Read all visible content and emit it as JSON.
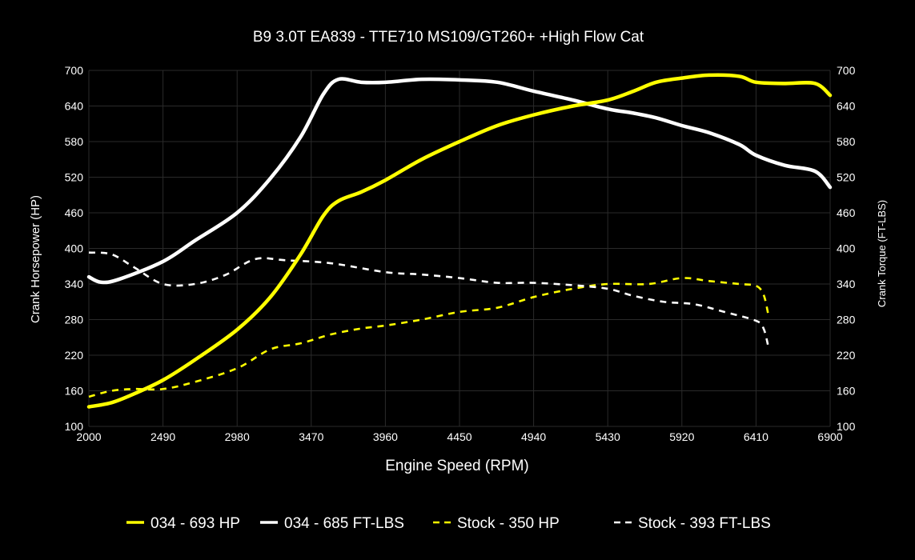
{
  "chart_data": {
    "type": "line",
    "title": "B9 3.0T EA839 - TTE710 MS109/GT260+ +High Flow Cat",
    "xlabel": "Engine Speed (RPM)",
    "ylabel_left": "Crank Horsepower (HP)",
    "ylabel_right": "Crank Torque (FT-LBS)",
    "xlim": [
      2000,
      6900
    ],
    "ylim": [
      100,
      700
    ],
    "x_ticks": [
      "2000",
      "2490",
      "2980",
      "3470",
      "3960",
      "4450",
      "4940",
      "5430",
      "5920",
      "6410",
      "6900"
    ],
    "y_ticks_left": [
      "100",
      "160",
      "220",
      "280",
      "340",
      "400",
      "460",
      "520",
      "580",
      "640",
      "700"
    ],
    "y_ticks_right": [
      "100",
      "160",
      "220",
      "280",
      "340",
      "400",
      "460",
      "520",
      "580",
      "640",
      "700"
    ],
    "grid": true,
    "legend_position": "bottom",
    "series": [
      {
        "name": "034 - 693 HP",
        "color": "#ffff00",
        "style": "solid",
        "points": [
          [
            2000,
            133
          ],
          [
            2150,
            140
          ],
          [
            2300,
            155
          ],
          [
            2490,
            178
          ],
          [
            2700,
            212
          ],
          [
            2980,
            263
          ],
          [
            3200,
            318
          ],
          [
            3400,
            390
          ],
          [
            3550,
            455
          ],
          [
            3650,
            480
          ],
          [
            3800,
            495
          ],
          [
            3960,
            515
          ],
          [
            4200,
            550
          ],
          [
            4450,
            580
          ],
          [
            4700,
            607
          ],
          [
            4940,
            625
          ],
          [
            5200,
            640
          ],
          [
            5430,
            650
          ],
          [
            5600,
            665
          ],
          [
            5750,
            680
          ],
          [
            5920,
            687
          ],
          [
            6100,
            692
          ],
          [
            6300,
            690
          ],
          [
            6410,
            680
          ],
          [
            6600,
            678
          ],
          [
            6800,
            678
          ],
          [
            6900,
            658
          ]
        ]
      },
      {
        "name": "034 - 685 FT-LBS",
        "color": "#ffffff",
        "style": "solid",
        "points": [
          [
            2000,
            352
          ],
          [
            2080,
            343
          ],
          [
            2200,
            348
          ],
          [
            2490,
            378
          ],
          [
            2700,
            413
          ],
          [
            2980,
            460
          ],
          [
            3200,
            518
          ],
          [
            3400,
            588
          ],
          [
            3550,
            660
          ],
          [
            3650,
            685
          ],
          [
            3800,
            680
          ],
          [
            3960,
            680
          ],
          [
            4200,
            685
          ],
          [
            4450,
            684
          ],
          [
            4700,
            680
          ],
          [
            4940,
            665
          ],
          [
            5200,
            650
          ],
          [
            5430,
            635
          ],
          [
            5600,
            628
          ],
          [
            5750,
            620
          ],
          [
            5920,
            607
          ],
          [
            6100,
            595
          ],
          [
            6300,
            575
          ],
          [
            6410,
            557
          ],
          [
            6600,
            540
          ],
          [
            6800,
            530
          ],
          [
            6900,
            503
          ]
        ]
      },
      {
        "name": "Stock - 350 HP",
        "color": "#ffff00",
        "style": "dashed",
        "points": [
          [
            2000,
            150
          ],
          [
            2150,
            160
          ],
          [
            2300,
            163
          ],
          [
            2490,
            163
          ],
          [
            2700,
            175
          ],
          [
            2980,
            198
          ],
          [
            3200,
            230
          ],
          [
            3400,
            240
          ],
          [
            3600,
            255
          ],
          [
            3800,
            265
          ],
          [
            3960,
            270
          ],
          [
            4200,
            280
          ],
          [
            4450,
            293
          ],
          [
            4700,
            300
          ],
          [
            4940,
            318
          ],
          [
            5200,
            332
          ],
          [
            5430,
            340
          ],
          [
            5700,
            340
          ],
          [
            5920,
            350
          ],
          [
            6100,
            345
          ],
          [
            6300,
            340
          ],
          [
            6410,
            337
          ],
          [
            6460,
            322
          ],
          [
            6490,
            290
          ]
        ]
      },
      {
        "name": "Stock - 393 FT-LBS",
        "color": "#ffffff",
        "style": "dashed",
        "points": [
          [
            2000,
            393
          ],
          [
            2150,
            390
          ],
          [
            2300,
            368
          ],
          [
            2490,
            340
          ],
          [
            2700,
            340
          ],
          [
            2900,
            355
          ],
          [
            3100,
            382
          ],
          [
            3300,
            380
          ],
          [
            3600,
            375
          ],
          [
            3960,
            360
          ],
          [
            4200,
            356
          ],
          [
            4450,
            350
          ],
          [
            4700,
            342
          ],
          [
            4940,
            342
          ],
          [
            5200,
            338
          ],
          [
            5430,
            332
          ],
          [
            5600,
            320
          ],
          [
            5800,
            310
          ],
          [
            6000,
            306
          ],
          [
            6200,
            293
          ],
          [
            6410,
            278
          ],
          [
            6460,
            265
          ],
          [
            6490,
            236
          ]
        ]
      }
    ]
  }
}
